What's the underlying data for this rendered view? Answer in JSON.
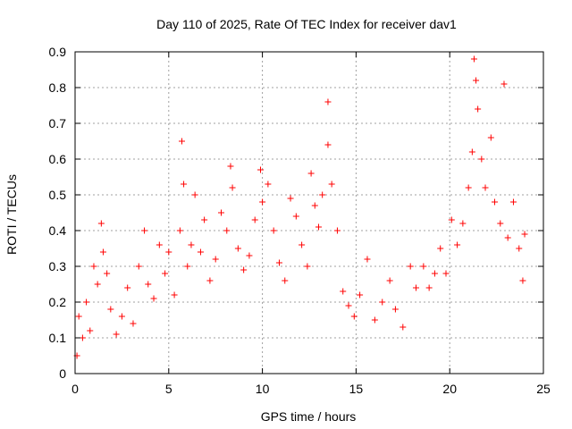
{
  "chart_data": {
    "type": "scatter",
    "title": "Day 110 of 2025, Rate Of TEC Index for receiver dav1",
    "xlabel": "GPS time / hours",
    "ylabel": "ROTI / TECUs",
    "xlim": [
      0,
      25
    ],
    "ylim": [
      0,
      0.9
    ],
    "x_ticks": [
      0,
      5,
      10,
      15,
      20,
      25
    ],
    "y_ticks": [
      0,
      0.1,
      0.2,
      0.3,
      0.4,
      0.5,
      0.6,
      0.7,
      0.8,
      0.9
    ],
    "x_tick_labels": [
      "0",
      "5",
      "10",
      "15",
      "20",
      "25"
    ],
    "y_tick_labels": [
      "0",
      "0.1",
      "0.2",
      "0.3",
      "0.4",
      "0.5",
      "0.6",
      "0.7",
      "0.8",
      "0.9"
    ],
    "grid": true,
    "marker": "+",
    "marker_color": "#ff0000",
    "series": [
      {
        "name": "ROTI",
        "points": [
          [
            0.1,
            0.05
          ],
          [
            0.2,
            0.16
          ],
          [
            0.4,
            0.1
          ],
          [
            0.6,
            0.2
          ],
          [
            0.8,
            0.12
          ],
          [
            1.0,
            0.3
          ],
          [
            1.2,
            0.25
          ],
          [
            1.4,
            0.42
          ],
          [
            1.5,
            0.34
          ],
          [
            1.7,
            0.28
          ],
          [
            1.9,
            0.18
          ],
          [
            2.2,
            0.11
          ],
          [
            2.5,
            0.16
          ],
          [
            2.8,
            0.24
          ],
          [
            3.1,
            0.14
          ],
          [
            3.4,
            0.3
          ],
          [
            3.7,
            0.4
          ],
          [
            3.9,
            0.25
          ],
          [
            4.2,
            0.21
          ],
          [
            4.5,
            0.36
          ],
          [
            4.8,
            0.28
          ],
          [
            5.0,
            0.34
          ],
          [
            5.3,
            0.22
          ],
          [
            5.6,
            0.4
          ],
          [
            5.7,
            0.65
          ],
          [
            5.8,
            0.53
          ],
          [
            6.0,
            0.3
          ],
          [
            6.2,
            0.36
          ],
          [
            6.4,
            0.5
          ],
          [
            6.7,
            0.34
          ],
          [
            6.9,
            0.43
          ],
          [
            7.2,
            0.26
          ],
          [
            7.5,
            0.32
          ],
          [
            7.8,
            0.45
          ],
          [
            8.1,
            0.4
          ],
          [
            8.3,
            0.58
          ],
          [
            8.4,
            0.52
          ],
          [
            8.7,
            0.35
          ],
          [
            9.0,
            0.29
          ],
          [
            9.3,
            0.33
          ],
          [
            9.6,
            0.43
          ],
          [
            9.9,
            0.57
          ],
          [
            10.0,
            0.48
          ],
          [
            10.3,
            0.53
          ],
          [
            10.6,
            0.4
          ],
          [
            10.9,
            0.31
          ],
          [
            11.2,
            0.26
          ],
          [
            11.5,
            0.49
          ],
          [
            11.8,
            0.44
          ],
          [
            12.1,
            0.36
          ],
          [
            12.4,
            0.3
          ],
          [
            12.6,
            0.56
          ],
          [
            12.8,
            0.47
          ],
          [
            13.0,
            0.41
          ],
          [
            13.2,
            0.5
          ],
          [
            13.5,
            0.76
          ],
          [
            13.5,
            0.64
          ],
          [
            13.7,
            0.53
          ],
          [
            14.0,
            0.4
          ],
          [
            14.3,
            0.23
          ],
          [
            14.6,
            0.19
          ],
          [
            14.9,
            0.16
          ],
          [
            15.2,
            0.22
          ],
          [
            15.6,
            0.32
          ],
          [
            16.0,
            0.15
          ],
          [
            16.4,
            0.2
          ],
          [
            16.8,
            0.26
          ],
          [
            17.1,
            0.18
          ],
          [
            17.5,
            0.13
          ],
          [
            17.9,
            0.3
          ],
          [
            18.2,
            0.24
          ],
          [
            18.6,
            0.3
          ],
          [
            18.9,
            0.24
          ],
          [
            19.2,
            0.28
          ],
          [
            19.5,
            0.35
          ],
          [
            19.8,
            0.28
          ],
          [
            20.1,
            0.43
          ],
          [
            20.4,
            0.36
          ],
          [
            20.7,
            0.42
          ],
          [
            21.0,
            0.52
          ],
          [
            21.2,
            0.62
          ],
          [
            21.3,
            0.88
          ],
          [
            21.4,
            0.82
          ],
          [
            21.5,
            0.74
          ],
          [
            21.7,
            0.6
          ],
          [
            21.9,
            0.52
          ],
          [
            22.2,
            0.66
          ],
          [
            22.4,
            0.48
          ],
          [
            22.7,
            0.42
          ],
          [
            22.9,
            0.81
          ],
          [
            23.1,
            0.38
          ],
          [
            23.4,
            0.48
          ],
          [
            23.7,
            0.35
          ],
          [
            23.9,
            0.26
          ],
          [
            24.0,
            0.39
          ]
        ]
      }
    ]
  }
}
